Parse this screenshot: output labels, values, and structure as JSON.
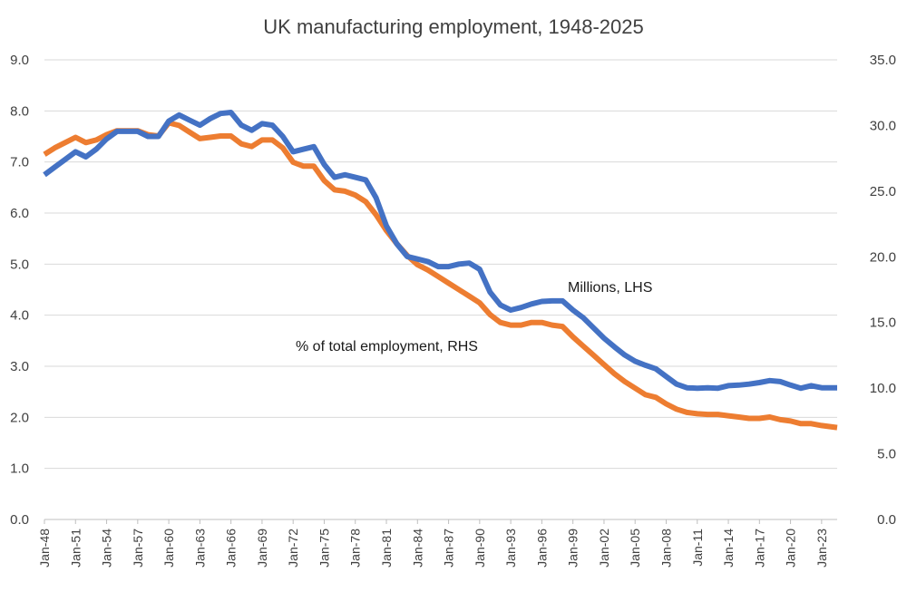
{
  "chart_data": {
    "type": "line",
    "title": "UK manufacturing employment, 1948-2025",
    "xlabel": "",
    "ylabel": "",
    "y_left_range": [
      0,
      9
    ],
    "y_right_range": [
      0,
      35
    ],
    "y_left_ticks": [
      "0.0",
      "1.0",
      "2.0",
      "3.0",
      "4.0",
      "5.0",
      "6.0",
      "7.0",
      "8.0",
      "9.0"
    ],
    "y_right_ticks": [
      "0.0",
      "5.0",
      "10.0",
      "15.0",
      "20.0",
      "25.0",
      "30.0",
      "35.0"
    ],
    "x_range": [
      1948,
      2024.5
    ],
    "x_tick_labels": [
      "Jan-48",
      "Jan-51",
      "Jan-54",
      "Jan-57",
      "Jan-60",
      "Jan-63",
      "Jan-66",
      "Jan-69",
      "Jan-72",
      "Jan-75",
      "Jan-78",
      "Jan-81",
      "Jan-84",
      "Jan-87",
      "Jan-90",
      "Jan-93",
      "Jan-96",
      "Jan-99",
      "Jan-02",
      "Jan-05",
      "Jan-08",
      "Jan-11",
      "Jan-14",
      "Jan-17",
      "Jan-20",
      "Jan-23"
    ],
    "grid": true,
    "legend": "none",
    "annotations": [
      "Millions, LHS",
      "% of total employment, RHS"
    ],
    "series": [
      {
        "name": "Millions, LHS",
        "axis": "left",
        "color": "#4472C4",
        "points": [
          [
            1948,
            6.75
          ],
          [
            1949,
            6.9
          ],
          [
            1950,
            7.05
          ],
          [
            1951,
            7.2
          ],
          [
            1952,
            7.1
          ],
          [
            1953,
            7.25
          ],
          [
            1954,
            7.45
          ],
          [
            1955,
            7.6
          ],
          [
            1956,
            7.6
          ],
          [
            1957,
            7.6
          ],
          [
            1958,
            7.5
          ],
          [
            1959,
            7.5
          ],
          [
            1960,
            7.8
          ],
          [
            1961,
            7.92
          ],
          [
            1962,
            7.82
          ],
          [
            1963,
            7.72
          ],
          [
            1964,
            7.85
          ],
          [
            1965,
            7.95
          ],
          [
            1966,
            7.97
          ],
          [
            1967,
            7.72
          ],
          [
            1968,
            7.62
          ],
          [
            1969,
            7.75
          ],
          [
            1970,
            7.72
          ],
          [
            1971,
            7.5
          ],
          [
            1972,
            7.2
          ],
          [
            1973,
            7.25
          ],
          [
            1974,
            7.3
          ],
          [
            1975,
            6.95
          ],
          [
            1976,
            6.7
          ],
          [
            1977,
            6.75
          ],
          [
            1978,
            6.7
          ],
          [
            1979,
            6.65
          ],
          [
            1980,
            6.3
          ],
          [
            1981,
            5.75
          ],
          [
            1982,
            5.4
          ],
          [
            1983,
            5.15
          ],
          [
            1984,
            5.1
          ],
          [
            1985,
            5.05
          ],
          [
            1986,
            4.95
          ],
          [
            1987,
            4.95
          ],
          [
            1988,
            5.0
          ],
          [
            1989,
            5.02
          ],
          [
            1990,
            4.9
          ],
          [
            1991,
            4.45
          ],
          [
            1992,
            4.2
          ],
          [
            1993,
            4.1
          ],
          [
            1994,
            4.15
          ],
          [
            1995,
            4.22
          ],
          [
            1996,
            4.27
          ],
          [
            1997,
            4.28
          ],
          [
            1998,
            4.28
          ],
          [
            1999,
            4.1
          ],
          [
            2000,
            3.95
          ],
          [
            2001,
            3.75
          ],
          [
            2002,
            3.55
          ],
          [
            2003,
            3.38
          ],
          [
            2004,
            3.22
          ],
          [
            2005,
            3.1
          ],
          [
            2006,
            3.02
          ],
          [
            2007,
            2.95
          ],
          [
            2008,
            2.8
          ],
          [
            2009,
            2.65
          ],
          [
            2010,
            2.58
          ],
          [
            2011,
            2.57
          ],
          [
            2012,
            2.58
          ],
          [
            2013,
            2.57
          ],
          [
            2014,
            2.62
          ],
          [
            2015,
            2.63
          ],
          [
            2016,
            2.65
          ],
          [
            2017,
            2.68
          ],
          [
            2018,
            2.72
          ],
          [
            2019,
            2.7
          ],
          [
            2020,
            2.63
          ],
          [
            2021,
            2.57
          ],
          [
            2022,
            2.62
          ],
          [
            2023,
            2.58
          ],
          [
            2024.5,
            2.58
          ]
        ]
      },
      {
        "name": "% of total employment, RHS",
        "axis": "right",
        "color": "#ED7D31",
        "points": [
          [
            1948,
            27.8
          ],
          [
            1949,
            28.3
          ],
          [
            1950,
            28.7
          ],
          [
            1951,
            29.1
          ],
          [
            1952,
            28.7
          ],
          [
            1953,
            28.9
          ],
          [
            1954,
            29.3
          ],
          [
            1955,
            29.6
          ],
          [
            1956,
            29.6
          ],
          [
            1957,
            29.6
          ],
          [
            1958,
            29.3
          ],
          [
            1959,
            29.2
          ],
          [
            1960,
            30.2
          ],
          [
            1961,
            30.0
          ],
          [
            1962,
            29.5
          ],
          [
            1963,
            29.0
          ],
          [
            1964,
            29.1
          ],
          [
            1965,
            29.2
          ],
          [
            1966,
            29.2
          ],
          [
            1967,
            28.6
          ],
          [
            1968,
            28.4
          ],
          [
            1969,
            28.9
          ],
          [
            1970,
            28.9
          ],
          [
            1971,
            28.3
          ],
          [
            1972,
            27.2
          ],
          [
            1973,
            26.9
          ],
          [
            1974,
            26.9
          ],
          [
            1975,
            25.8
          ],
          [
            1976,
            25.1
          ],
          [
            1977,
            25.0
          ],
          [
            1978,
            24.7
          ],
          [
            1979,
            24.2
          ],
          [
            1980,
            23.2
          ],
          [
            1981,
            22.0
          ],
          [
            1982,
            21.0
          ],
          [
            1983,
            20.1
          ],
          [
            1984,
            19.4
          ],
          [
            1985,
            19.0
          ],
          [
            1986,
            18.5
          ],
          [
            1987,
            18.0
          ],
          [
            1988,
            17.5
          ],
          [
            1989,
            17.0
          ],
          [
            1990,
            16.5
          ],
          [
            1991,
            15.6
          ],
          [
            1992,
            15.0
          ],
          [
            1993,
            14.8
          ],
          [
            1994,
            14.8
          ],
          [
            1995,
            15.0
          ],
          [
            1996,
            15.0
          ],
          [
            1997,
            14.8
          ],
          [
            1998,
            14.7
          ],
          [
            1999,
            13.9
          ],
          [
            2000,
            13.2
          ],
          [
            2001,
            12.5
          ],
          [
            2002,
            11.8
          ],
          [
            2003,
            11.1
          ],
          [
            2004,
            10.5
          ],
          [
            2005,
            10.0
          ],
          [
            2006,
            9.5
          ],
          [
            2007,
            9.3
          ],
          [
            2008,
            8.8
          ],
          [
            2009,
            8.4
          ],
          [
            2010,
            8.15
          ],
          [
            2011,
            8.05
          ],
          [
            2012,
            8.0
          ],
          [
            2013,
            8.0
          ],
          [
            2014,
            7.9
          ],
          [
            2015,
            7.8
          ],
          [
            2016,
            7.7
          ],
          [
            2017,
            7.7
          ],
          [
            2018,
            7.8
          ],
          [
            2019,
            7.6
          ],
          [
            2020,
            7.5
          ],
          [
            2021,
            7.3
          ],
          [
            2022,
            7.3
          ],
          [
            2023,
            7.15
          ],
          [
            2024.5,
            7.0
          ]
        ]
      }
    ]
  }
}
